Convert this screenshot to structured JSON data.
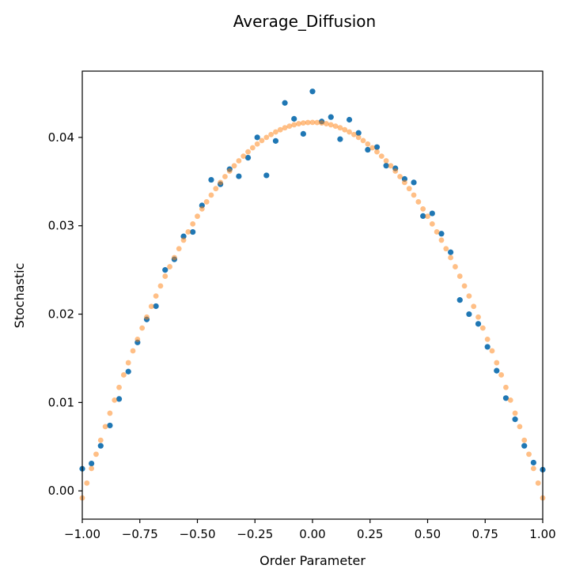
{
  "chart_data": {
    "type": "scatter",
    "title": "Average_Diffusion",
    "xlabel": "Order Parameter",
    "ylabel": "Stochastic",
    "xlim": [
      -1.0,
      1.0
    ],
    "ylim": [
      -0.0032,
      0.0475
    ],
    "xticks": [
      -1.0,
      -0.75,
      -0.5,
      -0.25,
      0.0,
      0.25,
      0.5,
      0.75,
      1.0
    ],
    "xtick_labels": [
      "−1.00",
      "−0.75",
      "−0.50",
      "−0.25",
      "0.00",
      "0.25",
      "0.50",
      "0.75",
      "1.00"
    ],
    "yticks": [
      0.0,
      0.01,
      0.02,
      0.03,
      0.04
    ],
    "ytick_labels": [
      "0.00",
      "0.01",
      "0.02",
      "0.03",
      "0.04"
    ],
    "grid": false,
    "legend": "none",
    "series": [
      {
        "color": "#1f77b4",
        "opacity": 1.0,
        "points": [
          [
            -1.0,
            0.0025
          ],
          [
            -0.96,
            0.0031
          ],
          [
            -0.92,
            0.0051
          ],
          [
            -0.88,
            0.0074
          ],
          [
            -0.84,
            0.0104
          ],
          [
            -0.8,
            0.0135
          ],
          [
            -0.76,
            0.0168
          ],
          [
            -0.72,
            0.0194
          ],
          [
            -0.68,
            0.0209
          ],
          [
            -0.64,
            0.025
          ],
          [
            -0.6,
            0.0262
          ],
          [
            -0.56,
            0.0288
          ],
          [
            -0.52,
            0.0293
          ],
          [
            -0.48,
            0.0323
          ],
          [
            -0.44,
            0.0352
          ],
          [
            -0.4,
            0.0347
          ],
          [
            -0.36,
            0.0364
          ],
          [
            -0.32,
            0.0356
          ],
          [
            -0.28,
            0.0377
          ],
          [
            -0.24,
            0.04
          ],
          [
            -0.2,
            0.0357
          ],
          [
            -0.16,
            0.0396
          ],
          [
            -0.12,
            0.0439
          ],
          [
            -0.08,
            0.0421
          ],
          [
            -0.04,
            0.0404
          ],
          [
            0.0,
            0.0452
          ],
          [
            0.04,
            0.0418
          ],
          [
            0.08,
            0.0423
          ],
          [
            0.12,
            0.0398
          ],
          [
            0.16,
            0.042
          ],
          [
            0.2,
            0.0405
          ],
          [
            0.24,
            0.0386
          ],
          [
            0.28,
            0.0389
          ],
          [
            0.32,
            0.0368
          ],
          [
            0.36,
            0.0365
          ],
          [
            0.4,
            0.0353
          ],
          [
            0.44,
            0.0349
          ],
          [
            0.48,
            0.0311
          ],
          [
            0.52,
            0.0314
          ],
          [
            0.56,
            0.0291
          ],
          [
            0.6,
            0.027
          ],
          [
            0.64,
            0.0216
          ],
          [
            0.68,
            0.02
          ],
          [
            0.72,
            0.0189
          ],
          [
            0.76,
            0.0163
          ],
          [
            0.8,
            0.0136
          ],
          [
            0.84,
            0.0105
          ],
          [
            0.88,
            0.0081
          ],
          [
            0.92,
            0.0051
          ],
          [
            0.96,
            0.0032
          ],
          [
            1.0,
            0.0024
          ]
        ]
      },
      {
        "color": "#ff7f0e",
        "opacity": 0.5,
        "curve": {
          "form": "y = a - b*x^2",
          "a": 0.0417,
          "b": 0.0425,
          "x_start": -1.0,
          "x_end": 1.0,
          "count": 101
        }
      }
    ]
  }
}
